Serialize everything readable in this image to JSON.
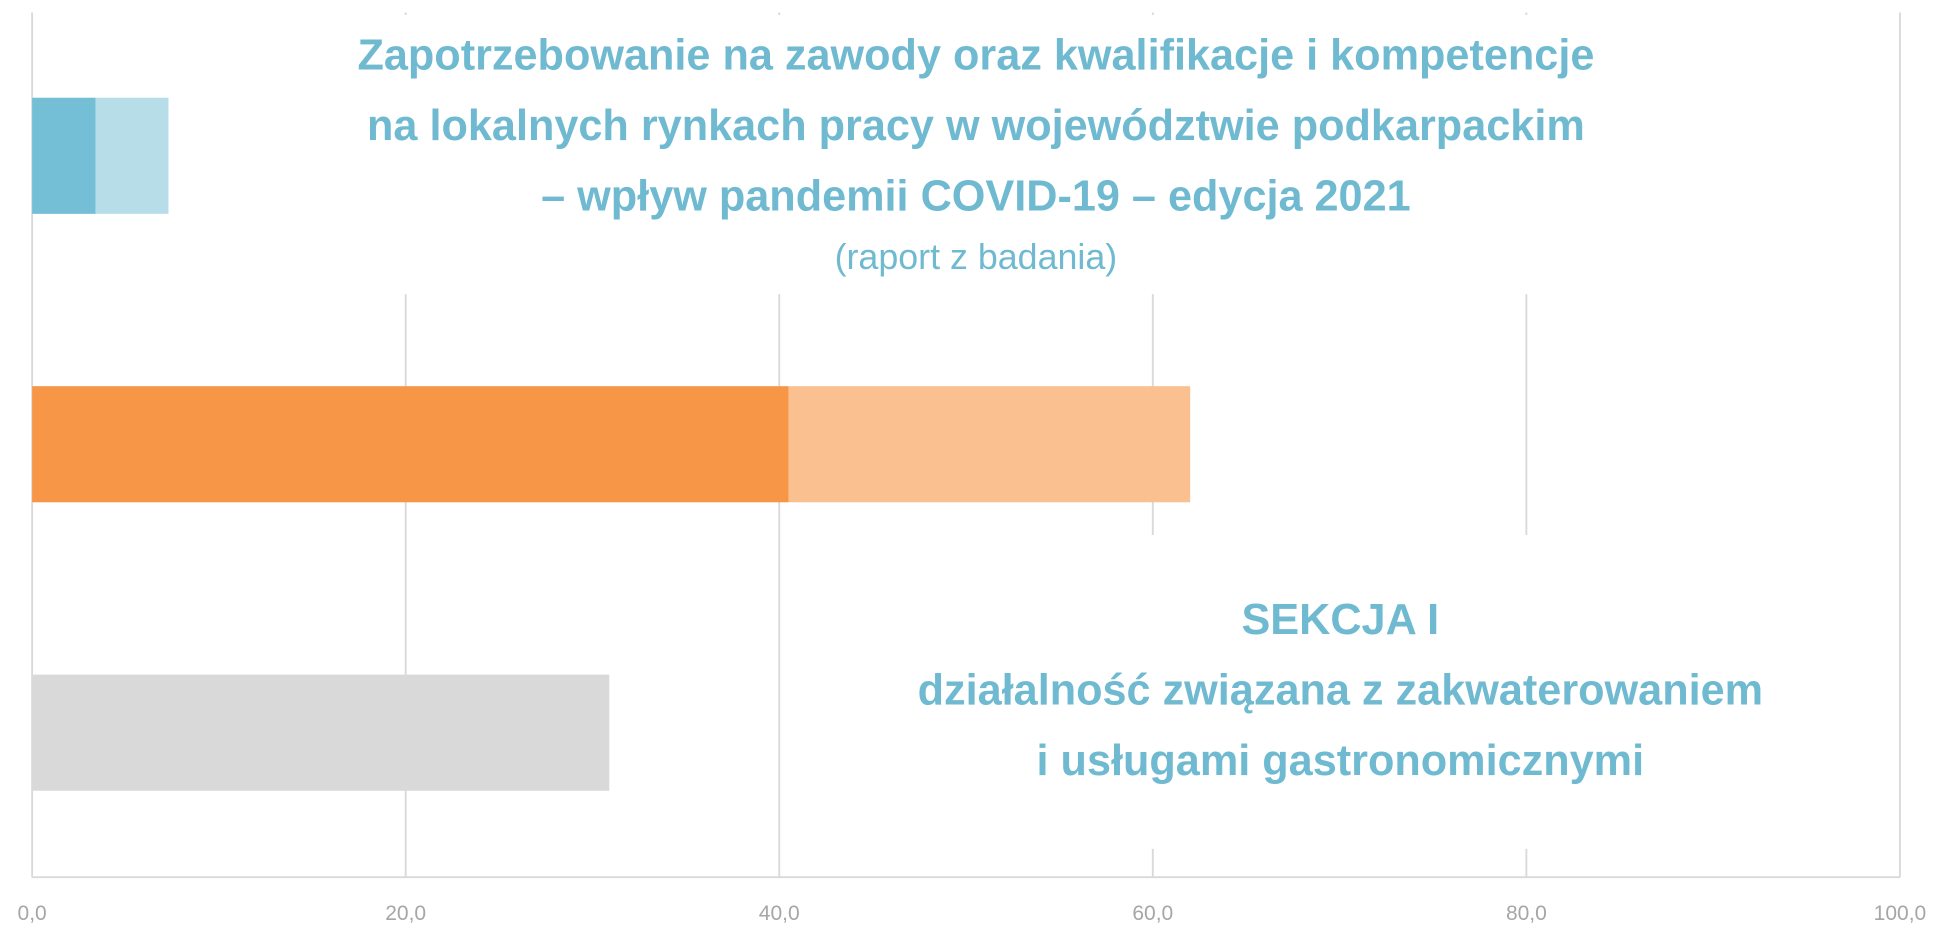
{
  "chart_data": {
    "type": "bar",
    "orientation": "horizontal",
    "stacked": true,
    "title": [
      "Zapotrzebowanie na zawody oraz kwalifikacje i kompetencje",
      "na lokalnych rynkach pracy w województwie podkarpackim",
      "– wpływ pandemii COVID-19 – edycja 2021"
    ],
    "subtitle": "(raport z badania)",
    "annotations": [
      "SEKCJA I",
      "działalność związana z zakwaterowaniem",
      "i usługami gastronomicznymi"
    ],
    "categories": [
      null,
      null,
      null
    ],
    "series": [
      {
        "colors": [
          "#74bfd5",
          "#f79646",
          "#d9d9d9"
        ],
        "values": [
          3.4,
          40.5,
          30.9
        ]
      },
      {
        "colors": [
          "#b7dde8",
          "#fac090",
          "#d9d9d9"
        ],
        "values": [
          3.9,
          21.5,
          null
        ]
      }
    ],
    "xlim": [
      0,
      100
    ],
    "xticks": [
      {
        "value": 0,
        "label": "0,0"
      },
      {
        "value": 20,
        "label": "20,0"
      },
      {
        "value": 40,
        "label": "40,0"
      },
      {
        "value": 60,
        "label": "60,0"
      },
      {
        "value": 80,
        "label": "80,0"
      },
      {
        "value": 100,
        "label": "100,0"
      }
    ],
    "grid": true,
    "text_color": "#6fbad0"
  }
}
